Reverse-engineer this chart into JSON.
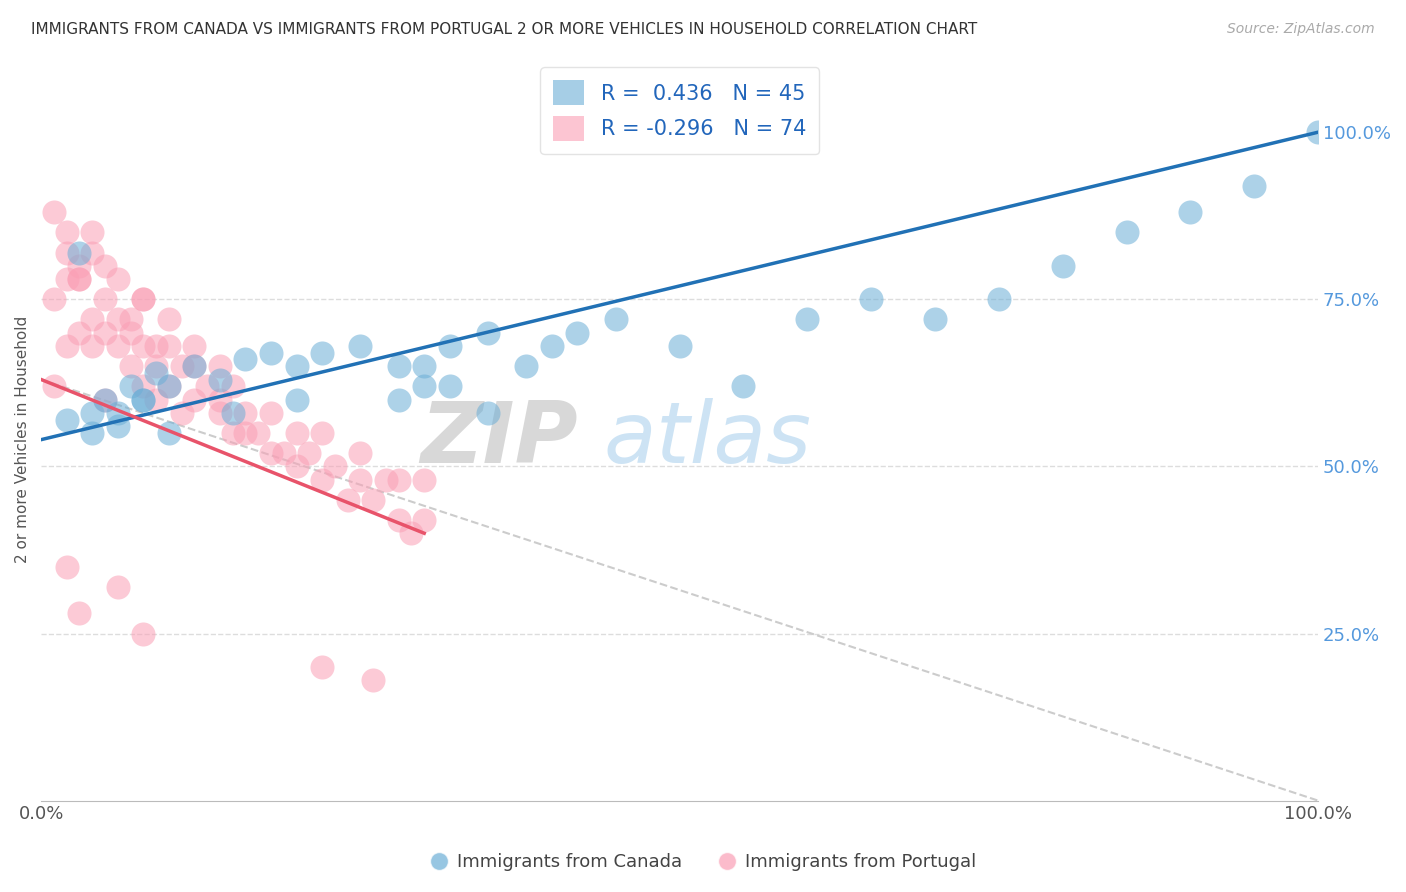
{
  "title": "IMMIGRANTS FROM CANADA VS IMMIGRANTS FROM PORTUGAL 2 OR MORE VEHICLES IN HOUSEHOLD CORRELATION CHART",
  "source": "Source: ZipAtlas.com",
  "ylabel": "2 or more Vehicles in Household",
  "canada_R": 0.436,
  "canada_N": 45,
  "portugal_R": -0.296,
  "portugal_N": 74,
  "legend_labels": [
    "Immigrants from Canada",
    "Immigrants from Portugal"
  ],
  "canada_color": "#6baed6",
  "portugal_color": "#fa9fb5",
  "canada_line_color": "#2171b5",
  "portugal_line_color": "#e8536a",
  "background_color": "#ffffff",
  "grid_color": "#dddddd",
  "watermark_zip": "ZIP",
  "watermark_atlas": "atlas",
  "xlim": [
    0.0,
    1.0
  ],
  "ylim": [
    0.0,
    1.08
  ],
  "canada_scatter_x": [
    0.02,
    0.03,
    0.04,
    0.05,
    0.06,
    0.07,
    0.08,
    0.09,
    0.1,
    0.12,
    0.14,
    0.16,
    0.18,
    0.2,
    0.22,
    0.25,
    0.28,
    0.3,
    0.32,
    0.35,
    0.38,
    0.4,
    0.42,
    0.45,
    0.5,
    0.55,
    0.6,
    0.65,
    0.7,
    0.75,
    0.8,
    0.85,
    0.9,
    0.95,
    1.0,
    0.04,
    0.06,
    0.08,
    0.1,
    0.15,
    0.2,
    0.3,
    0.35,
    0.28,
    0.32
  ],
  "canada_scatter_y": [
    0.57,
    0.82,
    0.58,
    0.6,
    0.56,
    0.62,
    0.6,
    0.64,
    0.62,
    0.65,
    0.63,
    0.66,
    0.67,
    0.65,
    0.67,
    0.68,
    0.65,
    0.62,
    0.68,
    0.7,
    0.65,
    0.68,
    0.7,
    0.72,
    0.68,
    0.62,
    0.72,
    0.75,
    0.72,
    0.75,
    0.8,
    0.85,
    0.88,
    0.92,
    1.0,
    0.55,
    0.58,
    0.6,
    0.55,
    0.58,
    0.6,
    0.65,
    0.58,
    0.6,
    0.62
  ],
  "portugal_scatter_x": [
    0.01,
    0.01,
    0.02,
    0.02,
    0.02,
    0.03,
    0.03,
    0.03,
    0.04,
    0.04,
    0.04,
    0.05,
    0.05,
    0.05,
    0.06,
    0.06,
    0.07,
    0.07,
    0.08,
    0.08,
    0.08,
    0.09,
    0.09,
    0.1,
    0.1,
    0.11,
    0.11,
    0.12,
    0.12,
    0.13,
    0.14,
    0.14,
    0.15,
    0.15,
    0.16,
    0.17,
    0.18,
    0.18,
    0.19,
    0.2,
    0.2,
    0.21,
    0.22,
    0.22,
    0.23,
    0.24,
    0.25,
    0.25,
    0.26,
    0.27,
    0.28,
    0.28,
    0.29,
    0.3,
    0.3,
    0.01,
    0.02,
    0.03,
    0.04,
    0.05,
    0.06,
    0.07,
    0.08,
    0.09,
    0.1,
    0.12,
    0.14,
    0.16,
    0.22,
    0.26,
    0.02,
    0.03,
    0.06,
    0.08
  ],
  "portugal_scatter_y": [
    0.62,
    0.75,
    0.68,
    0.78,
    0.85,
    0.7,
    0.78,
    0.8,
    0.72,
    0.68,
    0.82,
    0.7,
    0.75,
    0.6,
    0.68,
    0.72,
    0.65,
    0.7,
    0.62,
    0.68,
    0.75,
    0.6,
    0.65,
    0.62,
    0.68,
    0.58,
    0.65,
    0.6,
    0.68,
    0.62,
    0.58,
    0.65,
    0.55,
    0.62,
    0.58,
    0.55,
    0.52,
    0.58,
    0.52,
    0.5,
    0.55,
    0.52,
    0.48,
    0.55,
    0.5,
    0.45,
    0.48,
    0.52,
    0.45,
    0.48,
    0.42,
    0.48,
    0.4,
    0.42,
    0.48,
    0.88,
    0.82,
    0.78,
    0.85,
    0.8,
    0.78,
    0.72,
    0.75,
    0.68,
    0.72,
    0.65,
    0.6,
    0.55,
    0.2,
    0.18,
    0.35,
    0.28,
    0.32,
    0.25
  ],
  "canada_line_x": [
    0.0,
    1.0
  ],
  "canada_line_y": [
    0.54,
    1.0
  ],
  "portugal_line_x": [
    0.0,
    0.3
  ],
  "portugal_line_y": [
    0.63,
    0.4
  ],
  "dash_line_x": [
    0.0,
    1.0
  ],
  "dash_line_y": [
    0.63,
    0.0
  ]
}
